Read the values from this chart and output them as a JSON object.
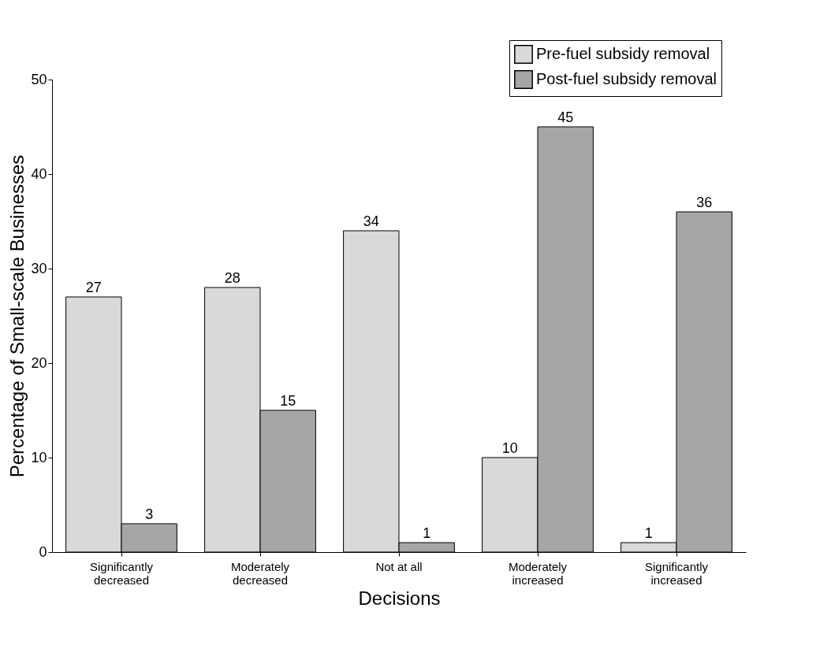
{
  "chart_data": {
    "type": "bar",
    "xlabel": "Decisions",
    "ylabel": "Percentage of Small-scale Businesses",
    "categories": [
      "Significantly\ndecreased",
      "Moderately\ndecreased",
      "Not at all",
      "Moderately\nincreased",
      "Significantly\nincreased"
    ],
    "series": [
      {
        "name": "Pre-fuel subsidy removal",
        "color": "#d9d9d9",
        "values": [
          27,
          28,
          34,
          10,
          1
        ]
      },
      {
        "name": "Post-fuel subsidy removal",
        "color": "#a6a6a6",
        "values": [
          3,
          15,
          1,
          45,
          36
        ]
      }
    ],
    "ylim": [
      0,
      50
    ],
    "yticks": [
      0,
      10,
      20,
      30,
      40,
      50
    ],
    "data_labels": true,
    "grid": false,
    "legend": "top right"
  }
}
